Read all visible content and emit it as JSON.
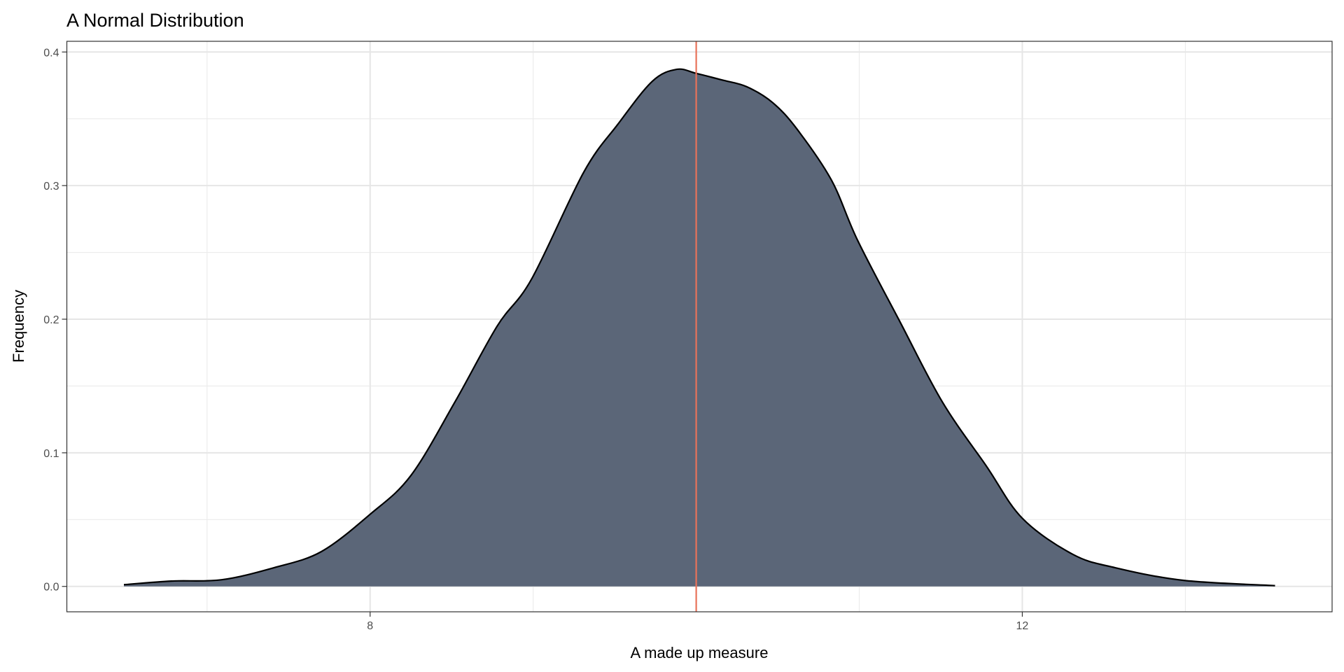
{
  "chart_data": {
    "type": "area",
    "title": "A Normal Distribution",
    "xlabel": "A made up measure",
    "ylabel": "Frequency",
    "xlim": [
      6.14,
      13.9
    ],
    "ylim": [
      -0.019,
      0.408
    ],
    "x_ticks": [
      8,
      12
    ],
    "x_tick_labels": [
      "8",
      "12"
    ],
    "y_ticks": [
      0.0,
      0.1,
      0.2,
      0.3,
      0.4
    ],
    "y_tick_labels": [
      "0.0",
      "0.1",
      "0.2",
      "0.3",
      "0.4"
    ],
    "grid": true,
    "fill_color": "#5b6678",
    "line_color": "#000000",
    "vline": {
      "x": 10,
      "color": "#e8735a"
    },
    "x": [
      6.49,
      6.78,
      7.09,
      7.41,
      7.7,
      8.0,
      8.25,
      8.52,
      8.78,
      8.99,
      9.31,
      9.52,
      9.73,
      9.88,
      10.0,
      10.16,
      10.31,
      10.47,
      10.62,
      10.83,
      10.99,
      11.25,
      11.51,
      11.78,
      12.0,
      12.31,
      12.57,
      12.99,
      13.55
    ],
    "y": [
      0.0013,
      0.004,
      0.005,
      0.014,
      0.026,
      0.054,
      0.083,
      0.138,
      0.195,
      0.23,
      0.31,
      0.346,
      0.378,
      0.387,
      0.384,
      0.379,
      0.374,
      0.362,
      0.342,
      0.304,
      0.259,
      0.198,
      0.138,
      0.09,
      0.051,
      0.024,
      0.014,
      0.0045,
      0.0006
    ]
  }
}
